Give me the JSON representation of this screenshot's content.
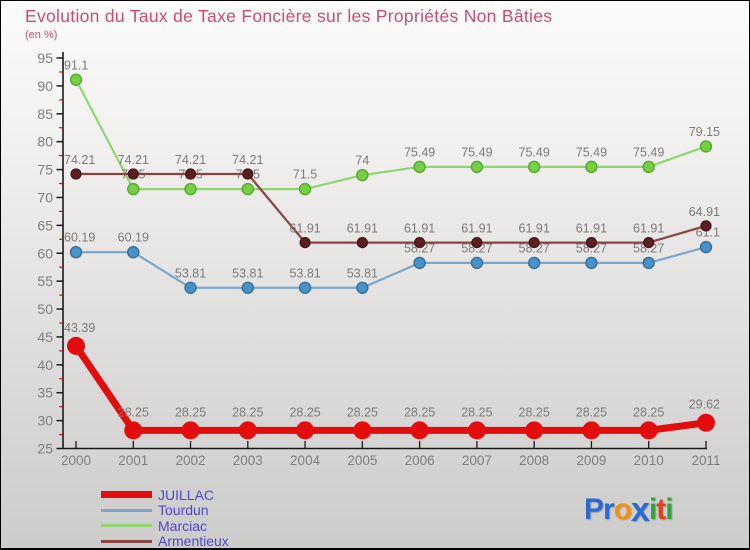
{
  "chart_data": {
    "type": "line",
    "title": "Evolution du Taux de Taxe Foncière sur les Propriétés Non Bâties",
    "subtitle": "(en %)",
    "x": [
      2000,
      2001,
      2002,
      2003,
      2004,
      2005,
      2006,
      2007,
      2008,
      2009,
      2010,
      2011
    ],
    "ylim": [
      25,
      95
    ],
    "y_major_step": 5,
    "y_minor_step": 2.5,
    "grid": false,
    "data_labels": true,
    "legend_position": "bottom-left",
    "axis_color": "#1a1a1a",
    "tick_label_color": "#7e7e7e",
    "minor_tick_color": "#c41111",
    "label_color": "#7b7b7b",
    "series": [
      {
        "name": "JUILLAC",
        "values": [
          43.39,
          28.25,
          28.25,
          28.25,
          28.25,
          28.25,
          28.25,
          28.25,
          28.25,
          28.25,
          28.25,
          29.62
        ],
        "line_color": "#e30d0d",
        "marker_color": "#e30d0d",
        "marker_stroke": "#e30d0d",
        "marker_stroke_width": 0,
        "line_width": 7,
        "marker_radius": 9,
        "legend_swatch_height": 7
      },
      {
        "name": "Tourdun",
        "values": [
          60.19,
          60.19,
          53.81,
          53.81,
          53.81,
          53.81,
          58.27,
          58.27,
          58.27,
          58.27,
          58.27,
          61.1
        ],
        "line_color": "#7ba7cb",
        "marker_color": "#4892c8",
        "marker_stroke": "#35719c",
        "marker_stroke_width": 1.4,
        "line_width": 2.2,
        "marker_radius": 5.5,
        "legend_swatch_height": 3
      },
      {
        "name": "Marciac",
        "values": [
          91.1,
          71.5,
          71.5,
          71.5,
          71.5,
          74,
          75.49,
          75.49,
          75.49,
          75.49,
          75.49,
          79.15
        ],
        "line_color": "#90d572",
        "marker_color": "#77cf45",
        "marker_stroke": "#55a832",
        "marker_stroke_width": 1.4,
        "line_width": 2.2,
        "marker_radius": 5.5,
        "legend_swatch_height": 3
      },
      {
        "name": "Armentieux",
        "values": [
          74.21,
          74.21,
          74.21,
          74.21,
          61.91,
          61.91,
          61.91,
          61.91,
          61.91,
          61.91,
          61.91,
          64.91
        ],
        "line_color": "#8a4343",
        "marker_color": "#5c1f1f",
        "marker_stroke": "#421616",
        "marker_stroke_width": 1.2,
        "line_width": 2.2,
        "marker_radius": 5,
        "legend_swatch_height": 3
      }
    ]
  },
  "logo": {
    "text": "Proxiti",
    "letters": [
      {
        "ch": "P",
        "color": "#2a6bd3"
      },
      {
        "ch": "r",
        "color": "#2a6bd3"
      },
      {
        "ch": "o",
        "color": "#f59114"
      },
      {
        "ch": "x",
        "color": "#2a6bd3"
      },
      {
        "ch": "i",
        "color": "#2fa43c"
      },
      {
        "ch": "t",
        "color": "#e2401f"
      },
      {
        "ch": "i",
        "color": "#2fa43c"
      }
    ]
  }
}
